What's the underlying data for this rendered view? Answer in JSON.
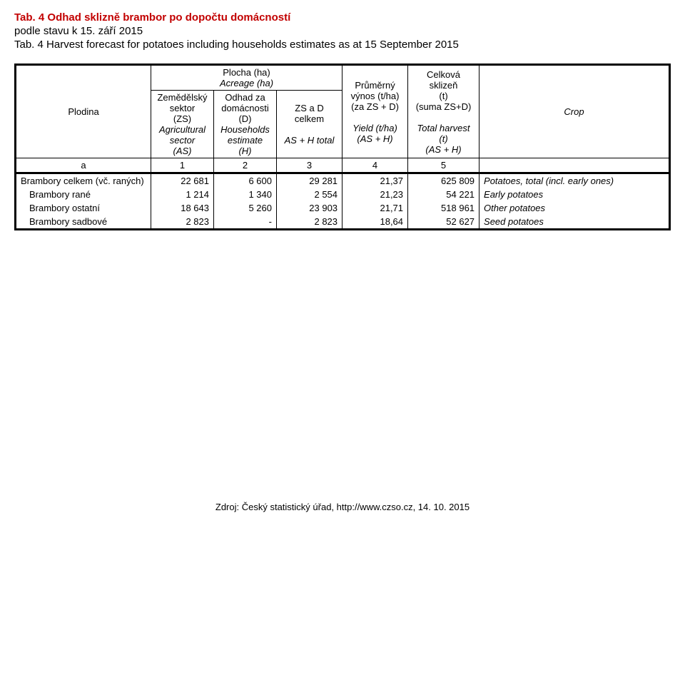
{
  "titles": {
    "t1": "Tab. 4  Odhad sklizně brambor po dopočtu domácností",
    "t2": "podle stavu k 15. září 2015",
    "t3": "Tab. 4  Harvest forecast for potatoes including households estimates as at 15 September 2015"
  },
  "header": {
    "plodina": "Plodina",
    "plocha_line1": "Plocha (ha)",
    "plocha_line2": "Acreage (ha)",
    "col1_lines": [
      "Zemědělský",
      "sektor",
      "(ZS)",
      "Agricultural",
      "sector",
      "(AS)"
    ],
    "col2_lines": [
      "Odhad za",
      "domácnosti",
      "(D)",
      "Households",
      "estimate",
      "(H)"
    ],
    "col3_lines": [
      "ZS a D",
      "celkem",
      "",
      "AS + H total"
    ],
    "col4_lines": [
      "Průměrný",
      "výnos (t/ha)",
      "(za ZS + D)",
      "",
      "Yield (t/ha)",
      "(AS + H)"
    ],
    "col5_lines": [
      "Celková",
      "sklizeň",
      "(t)",
      "(suma ZS+D)",
      "",
      "Total harvest",
      "(t)",
      "(AS + H)"
    ],
    "crop": "Crop",
    "letters": {
      "a": "a",
      "c1": "1",
      "c2": "2",
      "c3": "3",
      "c4": "4",
      "c5": "5"
    }
  },
  "rows": [
    {
      "label": "Brambory celkem (vč. raných)",
      "indent": false,
      "c1": "22 681",
      "c2": "6 600",
      "c3": "29 281",
      "c4": "21,37",
      "c5": "625 809",
      "desc": "Potatoes, total (incl. early ones)"
    },
    {
      "label": "Brambory rané",
      "indent": true,
      "c1": "1 214",
      "c2": "1 340",
      "c3": "2 554",
      "c4": "21,23",
      "c5": "54 221",
      "desc": "Early potatoes"
    },
    {
      "label": "Brambory ostatní",
      "indent": true,
      "c1": "18 643",
      "c2": "5 260",
      "c3": "23 903",
      "c4": "21,71",
      "c5": "518 961",
      "desc": "Other potatoes"
    },
    {
      "label": "Brambory sadbové",
      "indent": true,
      "c1": "2 823",
      "c2": "-",
      "c3": "2 823",
      "c4": "18,64",
      "c5": "52 627",
      "desc": "Seed potatoes"
    }
  ],
  "footer": "Zdroj: Český statistický úřad, http://www.czso.cz, 14. 10. 2015"
}
